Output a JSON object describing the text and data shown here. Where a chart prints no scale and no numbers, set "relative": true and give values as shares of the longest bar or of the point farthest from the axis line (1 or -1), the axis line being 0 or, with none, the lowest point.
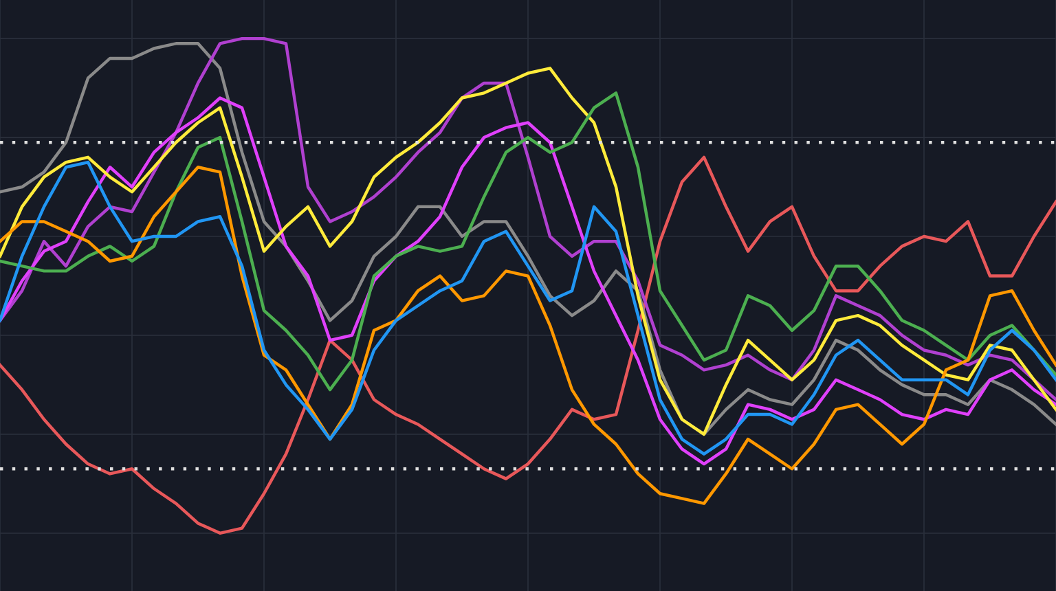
{
  "chart_data": {
    "type": "line",
    "relative": true,
    "grid": true,
    "legend": false,
    "marker": "none",
    "line_style": "solid",
    "categories": [
      null,
      null,
      null,
      null,
      null,
      null,
      null,
      null,
      null,
      null,
      null,
      null,
      null,
      null,
      null,
      null,
      null,
      null,
      null,
      null,
      null,
      null,
      null,
      null,
      null,
      null,
      null,
      null,
      null,
      null,
      null,
      null,
      null,
      null,
      null,
      null,
      null,
      null,
      null,
      null,
      null,
      null,
      null,
      null,
      null,
      null,
      null,
      null,
      null
    ],
    "ref_lines": [
      {
        "axis": "y",
        "value": 0.79,
        "color": "#e0e0e0",
        "line_style": "dotted"
      },
      {
        "axis": "y",
        "value": 0.13,
        "color": "#e0e0e0",
        "line_style": "dotted"
      }
    ],
    "series": [
      {
        "color": "#e8585a",
        "values": [
          0.34,
          0.29,
          0.23,
          0.18,
          0.14,
          0.12,
          0.13,
          0.09,
          0.06,
          0.02,
          0,
          0.01,
          0.08,
          0.16,
          0.27,
          0.39,
          0.35,
          0.27,
          0.24,
          0.22,
          0.19,
          0.16,
          0.13,
          0.11,
          0.14,
          0.19,
          0.25,
          0.23,
          0.24,
          0.41,
          0.59,
          0.71,
          0.76,
          0.66,
          0.57,
          0.63,
          0.66,
          0.56,
          0.49,
          0.49,
          0.54,
          0.58,
          0.6,
          0.59,
          0.63,
          0.52,
          0.52,
          0.6,
          0.67
        ]
      },
      {
        "color": "#8a8a8a",
        "values": [
          0.69,
          0.7,
          0.73,
          0.79,
          0.92,
          0.96,
          0.96,
          0.98,
          0.99,
          0.99,
          0.94,
          0.77,
          0.63,
          0.58,
          0.51,
          0.43,
          0.47,
          0.56,
          0.6,
          0.66,
          0.66,
          0.6,
          0.63,
          0.63,
          0.56,
          0.48,
          0.44,
          0.47,
          0.53,
          0.49,
          0.33,
          0.23,
          0.2,
          0.25,
          0.29,
          0.27,
          0.26,
          0.31,
          0.39,
          0.37,
          0.33,
          0.3,
          0.28,
          0.28,
          0.26,
          0.31,
          0.29,
          0.26,
          0.22
        ]
      },
      {
        "color": "#b040d0",
        "values": [
          0.43,
          0.49,
          0.59,
          0.54,
          0.62,
          0.66,
          0.65,
          0.73,
          0.81,
          0.91,
          0.99,
          1.0,
          1.0,
          0.99,
          0.7,
          0.63,
          0.65,
          0.68,
          0.72,
          0.77,
          0.81,
          0.88,
          0.91,
          0.91,
          0.76,
          0.6,
          0.56,
          0.59,
          0.59,
          0.51,
          0.38,
          0.36,
          0.33,
          0.34,
          0.36,
          0.33,
          0.31,
          0.37,
          0.48,
          0.46,
          0.44,
          0.4,
          0.37,
          0.36,
          0.34,
          0.36,
          0.35,
          0.31,
          0.27
        ]
      },
      {
        "color": "#e040fb",
        "values": [
          0.43,
          0.51,
          0.57,
          0.59,
          0.67,
          0.74,
          0.7,
          0.77,
          0.81,
          0.84,
          0.88,
          0.86,
          0.72,
          0.58,
          0.52,
          0.39,
          0.4,
          0.51,
          0.56,
          0.59,
          0.64,
          0.74,
          0.8,
          0.82,
          0.83,
          0.79,
          0.66,
          0.53,
          0.44,
          0.35,
          0.23,
          0.17,
          0.14,
          0.17,
          0.26,
          0.25,
          0.23,
          0.25,
          0.31,
          0.29,
          0.27,
          0.24,
          0.23,
          0.25,
          0.24,
          0.31,
          0.33,
          0.29,
          0.26
        ]
      },
      {
        "color": "#ffeb3b",
        "values": [
          0.56,
          0.66,
          0.72,
          0.75,
          0.76,
          0.72,
          0.69,
          0.74,
          0.79,
          0.83,
          0.86,
          0.72,
          0.57,
          0.62,
          0.66,
          0.58,
          0.63,
          0.72,
          0.76,
          0.79,
          0.83,
          0.88,
          0.89,
          0.91,
          0.93,
          0.94,
          0.88,
          0.83,
          0.7,
          0.48,
          0.31,
          0.23,
          0.2,
          0.3,
          0.39,
          0.35,
          0.31,
          0.35,
          0.43,
          0.44,
          0.42,
          0.38,
          0.35,
          0.32,
          0.31,
          0.38,
          0.37,
          0.31,
          0.25
        ]
      },
      {
        "color": "#4caf50",
        "values": [
          0.55,
          0.54,
          0.53,
          0.53,
          0.56,
          0.58,
          0.55,
          0.58,
          0.69,
          0.78,
          0.8,
          0.63,
          0.45,
          0.41,
          0.36,
          0.29,
          0.35,
          0.52,
          0.56,
          0.58,
          0.57,
          0.58,
          0.68,
          0.77,
          0.8,
          0.77,
          0.79,
          0.86,
          0.89,
          0.74,
          0.49,
          0.42,
          0.35,
          0.37,
          0.48,
          0.46,
          0.41,
          0.45,
          0.54,
          0.54,
          0.49,
          0.43,
          0.41,
          0.38,
          0.35,
          0.4,
          0.42,
          0.37,
          0.32
        ]
      },
      {
        "color": "#ff9800",
        "values": [
          0.59,
          0.63,
          0.63,
          0.61,
          0.59,
          0.55,
          0.56,
          0.64,
          0.69,
          0.74,
          0.73,
          0.52,
          0.36,
          0.33,
          0.26,
          0.19,
          0.26,
          0.41,
          0.43,
          0.49,
          0.52,
          0.47,
          0.48,
          0.53,
          0.52,
          0.42,
          0.29,
          0.22,
          0.18,
          0.12,
          0.08,
          0.07,
          0.06,
          0.12,
          0.19,
          0.16,
          0.13,
          0.18,
          0.25,
          0.26,
          0.22,
          0.18,
          0.22,
          0.33,
          0.35,
          0.48,
          0.49,
          0.41,
          0.34
        ]
      },
      {
        "color": "#2196f3",
        "values": [
          0.43,
          0.56,
          0.66,
          0.74,
          0.75,
          0.66,
          0.59,
          0.6,
          0.6,
          0.63,
          0.64,
          0.54,
          0.37,
          0.3,
          0.25,
          0.19,
          0.25,
          0.37,
          0.43,
          0.46,
          0.49,
          0.51,
          0.59,
          0.61,
          0.54,
          0.47,
          0.49,
          0.66,
          0.61,
          0.44,
          0.27,
          0.19,
          0.16,
          0.19,
          0.24,
          0.24,
          0.22,
          0.28,
          0.36,
          0.39,
          0.35,
          0.31,
          0.31,
          0.31,
          0.28,
          0.37,
          0.41,
          0.37,
          0.31
        ]
      }
    ]
  }
}
